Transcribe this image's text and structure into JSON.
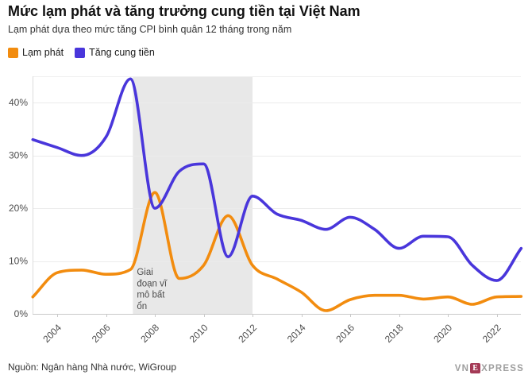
{
  "header": {
    "title": "Mức lạm phát và tăng trưởng cung tiền tại Việt Nam",
    "subtitle": "Lạm phát dựa theo mức tăng CPI bình quân 12 tháng trong năm"
  },
  "legend": [
    {
      "label": "Lạm phát",
      "color": "#F28C0F"
    },
    {
      "label": "Tăng cung tiền",
      "color": "#4936DB"
    }
  ],
  "chart_data": {
    "type": "line",
    "x": [
      2003,
      2004,
      2005,
      2006,
      2007,
      2008,
      2009,
      2010,
      2011,
      2012,
      2013,
      2014,
      2015,
      2016,
      2017,
      2018,
      2019,
      2020,
      2021,
      2022,
      2023
    ],
    "series": [
      {
        "name": "Lạm phát",
        "color": "#F28C0F",
        "values": [
          3.2,
          7.8,
          8.3,
          7.5,
          8.4,
          23.0,
          6.7,
          9.2,
          18.6,
          9.2,
          6.6,
          4.1,
          0.6,
          2.7,
          3.5,
          3.5,
          2.8,
          3.2,
          1.8,
          3.2,
          3.3
        ]
      },
      {
        "name": "Tăng cung tiền",
        "color": "#4936DB",
        "values": [
          33.0,
          31.5,
          30.0,
          33.5,
          44.5,
          20.0,
          27.0,
          28.4,
          10.8,
          22.3,
          18.9,
          17.7,
          16.0,
          18.3,
          16.0,
          12.4,
          14.7,
          14.6,
          9.2,
          6.3,
          12.4
        ]
      }
    ],
    "ylim": [
      0,
      45
    ],
    "yticks": [
      0,
      10,
      20,
      30,
      40
    ],
    "ytick_labels": [
      "0%",
      "10%",
      "20%",
      "30%",
      "40%"
    ],
    "xticks": [
      2004,
      2006,
      2008,
      2010,
      2012,
      2014,
      2016,
      2018,
      2020,
      2022
    ],
    "grid": true,
    "legend_position": "top-left",
    "shaded_region": {
      "from": 2007.1,
      "to": 2012.0,
      "color": "#e8e8e8"
    },
    "annotation": {
      "text": "Giai đoạn vĩ mô bất ổn",
      "lines": [
        "Giai",
        "đoạn vĩ",
        "mô bất",
        "ổn"
      ]
    }
  },
  "footer": {
    "source": "Nguồn: Ngân hàng Nhà nước, WiGroup",
    "logo": {
      "pre": "VN",
      "mid": "E",
      "post": "XPRESS",
      "box_color": "#A43A56",
      "text_color": "#9E9E9E"
    }
  }
}
